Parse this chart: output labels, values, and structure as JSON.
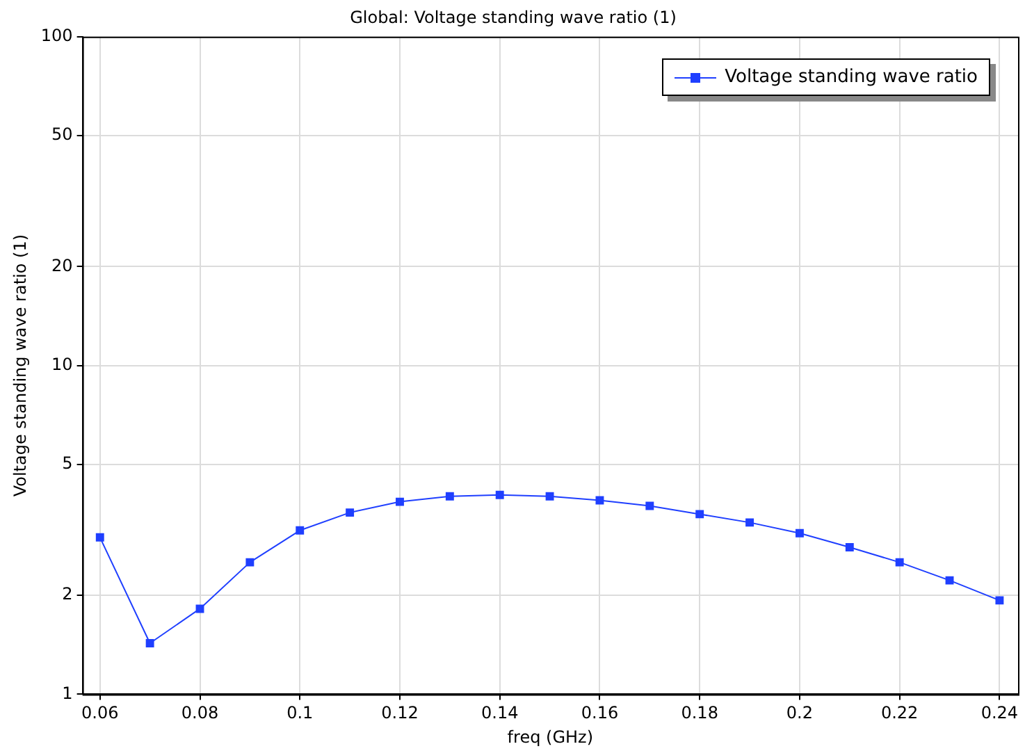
{
  "chart_data": {
    "type": "line",
    "title": "Global: Voltage standing wave ratio (1)",
    "xlabel": "freq (GHz)",
    "ylabel": "Voltage standing wave ratio (1)",
    "x": [
      0.06,
      0.07,
      0.08,
      0.09,
      0.1,
      0.11,
      0.12,
      0.13,
      0.14,
      0.15,
      0.16,
      0.17,
      0.18,
      0.19,
      0.2,
      0.21,
      0.22,
      0.23,
      0.24
    ],
    "series": [
      {
        "name": "Voltage standing wave ratio",
        "color": "#1f3fff",
        "values": [
          3.0,
          1.43,
          1.82,
          2.52,
          3.15,
          3.57,
          3.85,
          4.0,
          4.04,
          4.0,
          3.89,
          3.74,
          3.53,
          3.33,
          3.09,
          2.8,
          2.52,
          2.22,
          1.93
        ]
      }
    ],
    "xlim": [
      0.0565,
      0.2437
    ],
    "ylim": [
      1,
      100
    ],
    "xticks": [
      0.06,
      0.08,
      0.1,
      0.12,
      0.14,
      0.16,
      0.18,
      0.2,
      0.22,
      0.24
    ],
    "yticks": [
      1,
      2,
      5,
      10,
      20,
      50,
      100
    ],
    "log": "y",
    "grid": true,
    "legend": "top right",
    "marker": "square"
  }
}
